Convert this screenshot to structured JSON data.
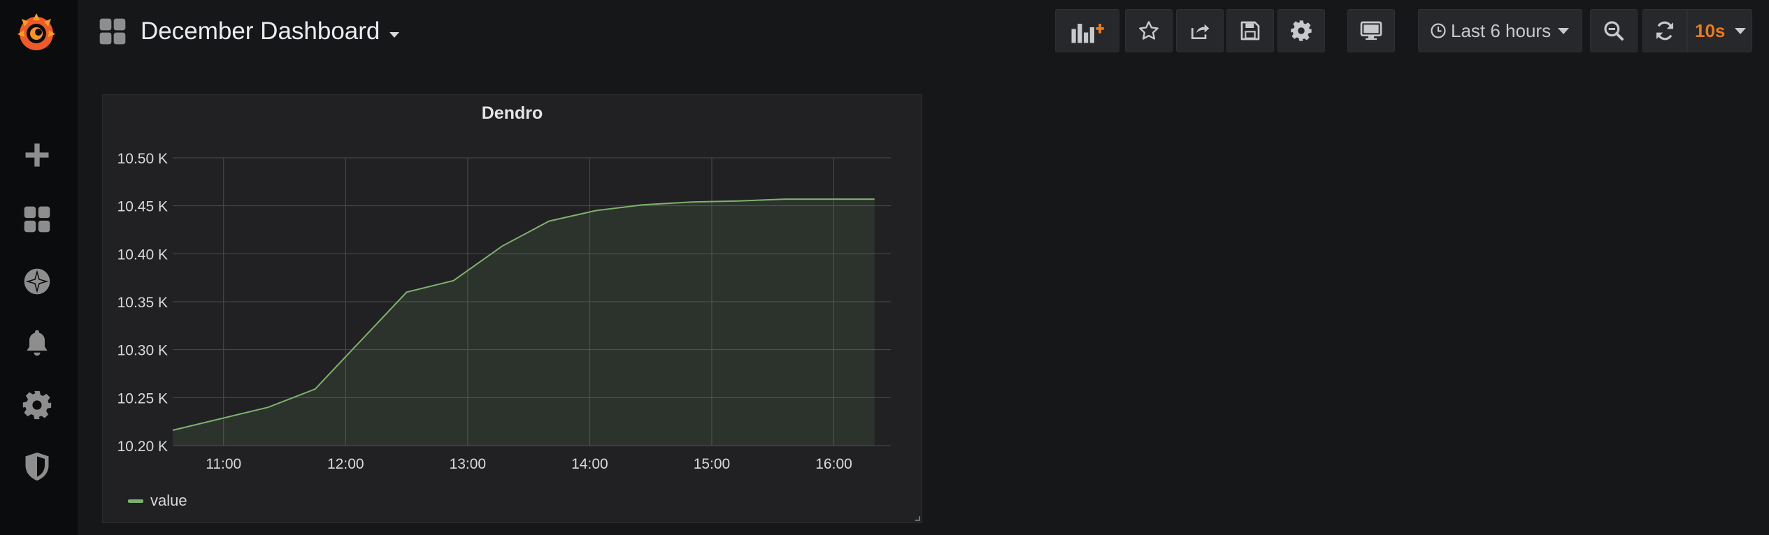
{
  "sidemenu": {
    "items": [
      {
        "name": "grafana-logo",
        "icon": "grafana-logo"
      },
      {
        "name": "create",
        "icon": "plus-icon"
      },
      {
        "name": "dashboards",
        "icon": "dashboards-icon"
      },
      {
        "name": "explore",
        "icon": "compass-icon"
      },
      {
        "name": "alerting",
        "icon": "bell-icon"
      },
      {
        "name": "configuration",
        "icon": "gear-icon"
      },
      {
        "name": "server-admin",
        "icon": "shield-icon"
      }
    ]
  },
  "navbar": {
    "title": "December Dashboard",
    "buttons": {
      "add_panel": "add-panel-icon",
      "star": "star-icon",
      "share": "share-icon",
      "save": "save-icon",
      "settings": "gear-icon",
      "tv_mode": "monitor-icon",
      "zoom_out": "zoom-out-icon",
      "refresh": "refresh-icon"
    },
    "time_range": "Last 6 hours",
    "refresh_interval": "10s"
  },
  "colors": {
    "background": "#161719",
    "panel": "#212124",
    "series": "#7eb26d",
    "refresh_interval": "#eb7b18",
    "logo": "#f05a28"
  },
  "panel": {
    "title": "Dendro",
    "legend": [
      "value"
    ]
  },
  "chart_data": {
    "type": "area",
    "title": "Dendro",
    "xlabel": "",
    "ylabel": "",
    "x_ticks": [
      "11:00",
      "12:00",
      "13:00",
      "14:00",
      "15:00",
      "16:00"
    ],
    "y_ticks": [
      "10.20 K",
      "10.25 K",
      "10.30 K",
      "10.35 K",
      "10.40 K",
      "10.45 K",
      "10.50 K"
    ],
    "ylim": [
      10200,
      10500
    ],
    "xlim": [
      "10:35",
      "16:28"
    ],
    "grid": true,
    "legend": "bottom-left",
    "series": [
      {
        "name": "value",
        "x": [
          "10:35",
          "11:22",
          "11:45",
          "12:30",
          "12:53",
          "13:17",
          "13:40",
          "14:03",
          "14:26",
          "14:50",
          "15:13",
          "15:36",
          "16:00",
          "16:20"
        ],
        "y": [
          10216,
          10240,
          10259,
          10360,
          10372,
          10408,
          10434,
          10445,
          10451,
          10454,
          10455,
          10457,
          10457,
          10457
        ]
      }
    ]
  }
}
